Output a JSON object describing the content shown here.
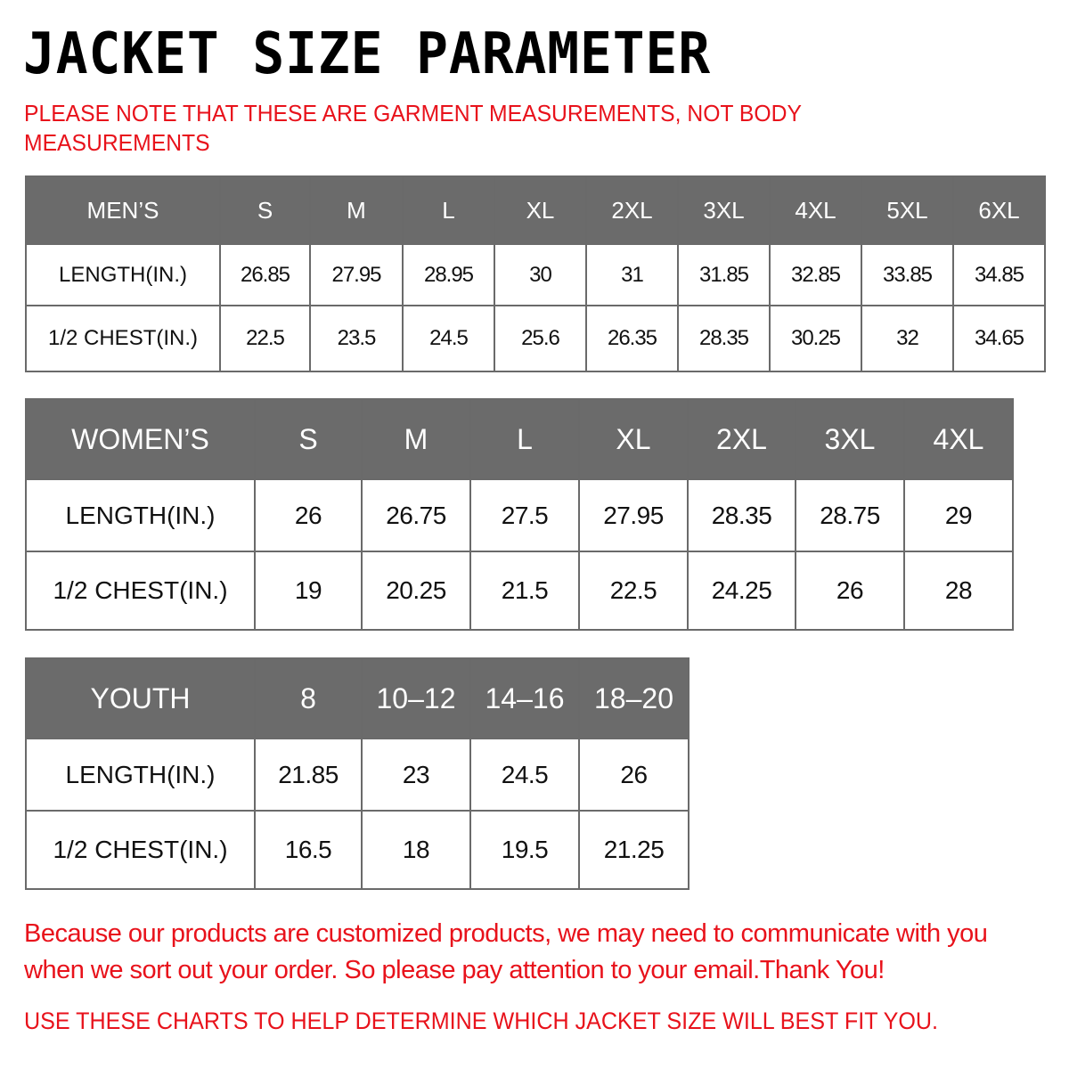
{
  "title": "JACKET SIZE PARAMETER",
  "note": "PLEASE NOTE THAT THESE ARE GARMENT MEASUREMENTS, NOT BODY MEASUREMENTS",
  "colors": {
    "header_bg": "#6b6b6b",
    "accent_red": "#e8121b"
  },
  "mens": {
    "header": [
      "MEN’S",
      "S",
      "M",
      "L",
      "XL",
      "2XL",
      "3XL",
      "4XL",
      "5XL",
      "6XL"
    ],
    "rows": [
      [
        "LENGTH(IN.)",
        "26.85",
        "27.95",
        "28.95",
        "30",
        "31",
        "31.85",
        "32.85",
        "33.85",
        "34.85"
      ],
      [
        "1/2 CHEST(IN.)",
        "22.5",
        "23.5",
        "24.5",
        "25.6",
        "26.35",
        "28.35",
        "30.25",
        "32",
        "34.65"
      ]
    ]
  },
  "womens": {
    "header": [
      "WOMEN’S",
      "S",
      "M",
      "L",
      "XL",
      "2XL",
      "3XL",
      "4XL"
    ],
    "rows": [
      [
        "LENGTH(IN.)",
        "26",
        "26.75",
        "27.5",
        "27.95",
        "28.35",
        "28.75",
        "29"
      ],
      [
        "1/2 CHEST(IN.)",
        "19",
        "20.25",
        "21.5",
        "22.5",
        "24.25",
        "26",
        "28"
      ]
    ]
  },
  "youth": {
    "header": [
      "YOUTH",
      "8",
      "10–12",
      "14–16",
      "18–20"
    ],
    "rows": [
      [
        "LENGTH(IN.)",
        "21.85",
        "23",
        "24.5",
        "26"
      ],
      [
        "1/2 CHEST(IN.)",
        "16.5",
        "18",
        "19.5",
        "21.25"
      ]
    ]
  },
  "footer_message": "Because our products are customized products, we may need to communicate with you when we sort out your order. So please pay attention to your email.Thank You!",
  "footer_instruction": "USE THESE CHARTS TO HELP DETERMINE WHICH JACKET SIZE WILL BEST FIT YOU."
}
